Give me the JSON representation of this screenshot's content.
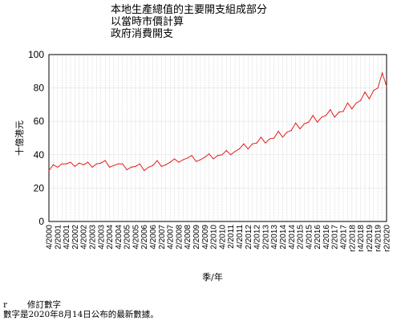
{
  "chart_data": {
    "type": "line",
    "title": [
      "本地生產總值的主要開支組成部分",
      "以當時市價計算",
      "政府消費開支"
    ],
    "xlabel": "季/年",
    "ylabel": "十億港元",
    "ylim": [
      0,
      100
    ],
    "yticks": [
      0,
      20,
      40,
      60,
      80,
      100
    ],
    "grid": true,
    "line_color": "#e0201c",
    "x_tick_labels": [
      "4/2000",
      "2/2001",
      "4/2001",
      "2/2002",
      "4/2002",
      "2/2003",
      "4/2003",
      "2/2004",
      "4/2004",
      "2/2005",
      "4/2005",
      "2/2006",
      "4/2006",
      "2/2007",
      "4/2007",
      "2/2008",
      "4/2008",
      "2/2009",
      "4/2009",
      "2/2010",
      "4/2010",
      "2/2011",
      "4/2011",
      "2/2012",
      "4/2012",
      "2/2013",
      "4/2013",
      "2/2014",
      "4/2014",
      "2/2015",
      "4/2015",
      "2/2016",
      "4/2016",
      "2/2017",
      "4/2017",
      "r2/2018",
      "r4/2018",
      "r2/2019",
      "r4/2019",
      "r2/2020"
    ],
    "x": [
      "4/2000",
      "1/2001",
      "2/2001",
      "3/2001",
      "4/2001",
      "1/2002",
      "2/2002",
      "3/2002",
      "4/2002",
      "1/2003",
      "2/2003",
      "3/2003",
      "4/2003",
      "1/2004",
      "2/2004",
      "3/2004",
      "4/2004",
      "1/2005",
      "2/2005",
      "3/2005",
      "4/2005",
      "1/2006",
      "2/2006",
      "3/2006",
      "4/2006",
      "1/2007",
      "2/2007",
      "3/2007",
      "4/2007",
      "1/2008",
      "2/2008",
      "3/2008",
      "4/2008",
      "1/2009",
      "2/2009",
      "3/2009",
      "4/2009",
      "1/2010",
      "2/2010",
      "3/2010",
      "4/2010",
      "1/2011",
      "2/2011",
      "3/2011",
      "4/2011",
      "1/2012",
      "2/2012",
      "3/2012",
      "4/2012",
      "1/2013",
      "2/2013",
      "3/2013",
      "4/2013",
      "1/2014",
      "2/2014",
      "3/2014",
      "4/2014",
      "1/2015",
      "2/2015",
      "3/2015",
      "4/2015",
      "1/2016",
      "2/2016",
      "3/2016",
      "4/2016",
      "1/2017",
      "2/2017",
      "3/2017",
      "4/2017",
      "1/2018",
      "2/2018",
      "3/2018",
      "4/2018",
      "1/2019",
      "2/2019",
      "3/2019",
      "4/2019",
      "1/2020",
      "2/2020"
    ],
    "series": [
      {
        "values": [
          30.5,
          34.0,
          32.5,
          34.5,
          34.5,
          35.5,
          33.0,
          35.0,
          34.0,
          35.5,
          32.5,
          34.5,
          35.0,
          36.5,
          32.5,
          33.5,
          34.5,
          34.5,
          31.0,
          32.5,
          33.0,
          34.5,
          30.5,
          32.5,
          33.5,
          36.5,
          33.0,
          34.0,
          35.5,
          37.5,
          35.5,
          37.0,
          38.0,
          39.5,
          36.0,
          37.0,
          38.5,
          40.5,
          37.5,
          39.5,
          40.0,
          42.5,
          40.0,
          42.0,
          43.5,
          46.5,
          43.5,
          46.5,
          47.0,
          50.5,
          47.0,
          49.5,
          50.0,
          54.0,
          50.5,
          53.5,
          54.5,
          59.0,
          55.5,
          58.5,
          59.5,
          63.5,
          59.5,
          62.5,
          63.5,
          67.0,
          62.5,
          65.5,
          66.0,
          71.0,
          67.5,
          71.0,
          72.5,
          77.5,
          73.5,
          78.5,
          80.0,
          89.0,
          81.0
        ]
      }
    ]
  },
  "notes": [
    {
      "symbol": "r",
      "text": "修訂數字"
    },
    {
      "symbol": "",
      "text": "數字是2020年8月14日公布的最新數據。"
    }
  ]
}
